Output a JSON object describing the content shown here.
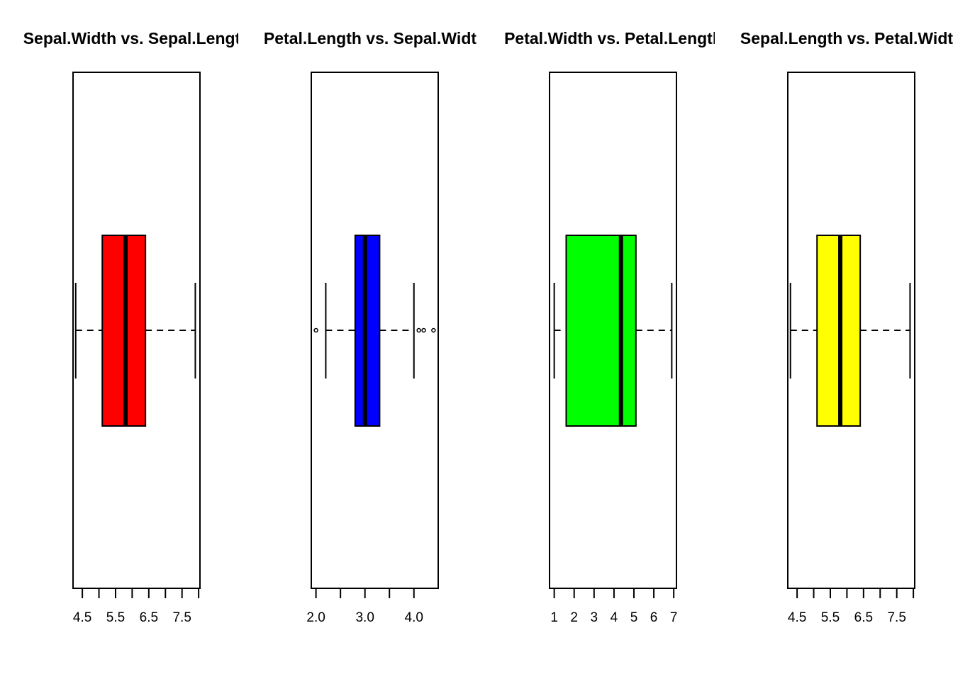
{
  "chart_data": [
    {
      "type": "boxplot",
      "orientation": "horizontal",
      "title": "Sepal.Width vs. Sepal.Length",
      "fill_color": "#ff0000",
      "xlim": [
        4.22,
        8.04
      ],
      "ticks": [
        4.5,
        5.0,
        5.5,
        6.0,
        6.5,
        7.0,
        7.5,
        8.0
      ],
      "tick_labels": [
        "4.5",
        "",
        "5.5",
        "",
        "6.5",
        "",
        "7.5",
        ""
      ],
      "stats": {
        "min": 4.3,
        "q1": 5.1,
        "median": 5.8,
        "q3": 6.4,
        "max": 7.9
      },
      "outliers": []
    },
    {
      "type": "boxplot",
      "orientation": "horizontal",
      "title": "Petal.Length vs. Sepal.Width",
      "fill_color": "#0000ff",
      "xlim": [
        1.904,
        4.496
      ],
      "ticks": [
        2.0,
        2.5,
        3.0,
        3.5,
        4.0
      ],
      "tick_labels": [
        "2.0",
        "",
        "3.0",
        "",
        "4.0"
      ],
      "stats": {
        "min": 2.2,
        "q1": 2.8,
        "median": 3.0,
        "q3": 3.3,
        "max": 4.0
      },
      "outliers": [
        2.0,
        4.1,
        4.2,
        4.4
      ]
    },
    {
      "type": "boxplot",
      "orientation": "horizontal",
      "title": "Petal.Width vs. Petal.Length",
      "fill_color": "#00ff00",
      "xlim": [
        0.764,
        7.136
      ],
      "ticks": [
        1,
        2,
        3,
        4,
        5,
        6,
        7
      ],
      "tick_labels": [
        "1",
        "2",
        "3",
        "4",
        "5",
        "6",
        "7"
      ],
      "stats": {
        "min": 1.0,
        "q1": 1.6,
        "median": 4.35,
        "q3": 5.1,
        "max": 6.9
      },
      "outliers": []
    },
    {
      "type": "boxplot",
      "orientation": "horizontal",
      "title": "Sepal.Length vs. Petal.Width",
      "fill_color": "#ffff00",
      "xlim": [
        4.22,
        8.04
      ],
      "ticks": [
        4.5,
        5.0,
        5.5,
        6.0,
        6.5,
        7.0,
        7.5,
        8.0
      ],
      "tick_labels": [
        "4.5",
        "",
        "5.5",
        "",
        "6.5",
        "",
        "7.5",
        ""
      ],
      "stats": {
        "min": 4.3,
        "q1": 5.1,
        "median": 5.8,
        "q3": 6.4,
        "max": 7.9
      },
      "outliers": []
    }
  ]
}
